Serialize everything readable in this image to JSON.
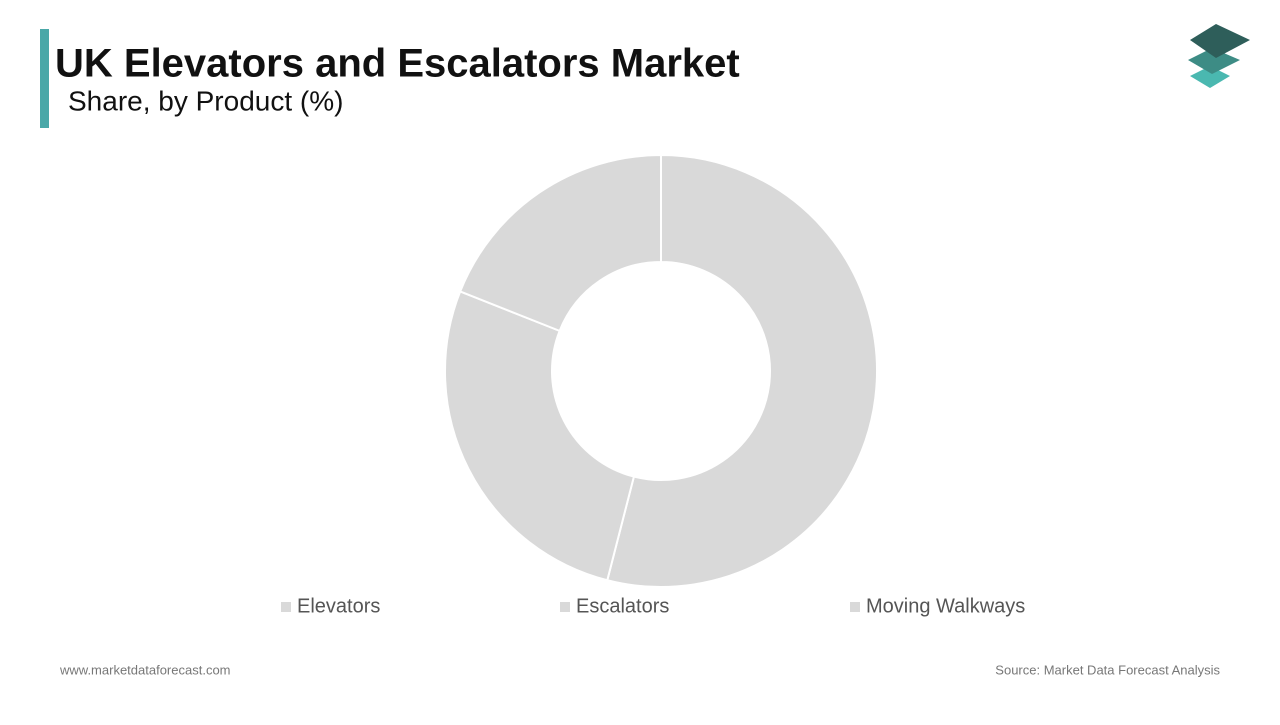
{
  "chart_data": {
    "type": "donut",
    "title": "UK Elevators and Escalators Market",
    "subtitle": "Share, by Product (%)",
    "categories": [
      "Elevators",
      "Escalators",
      "Moving Walkways"
    ],
    "values": [
      54,
      27,
      19
    ],
    "colors": [
      "#d9d9d9",
      "#d9d9d9",
      "#d9d9d9"
    ],
    "legend": "bottom"
  },
  "footer": {
    "website": "www.marketdataforecast.com",
    "source": "Source: Market Data Forecast Analysis"
  }
}
